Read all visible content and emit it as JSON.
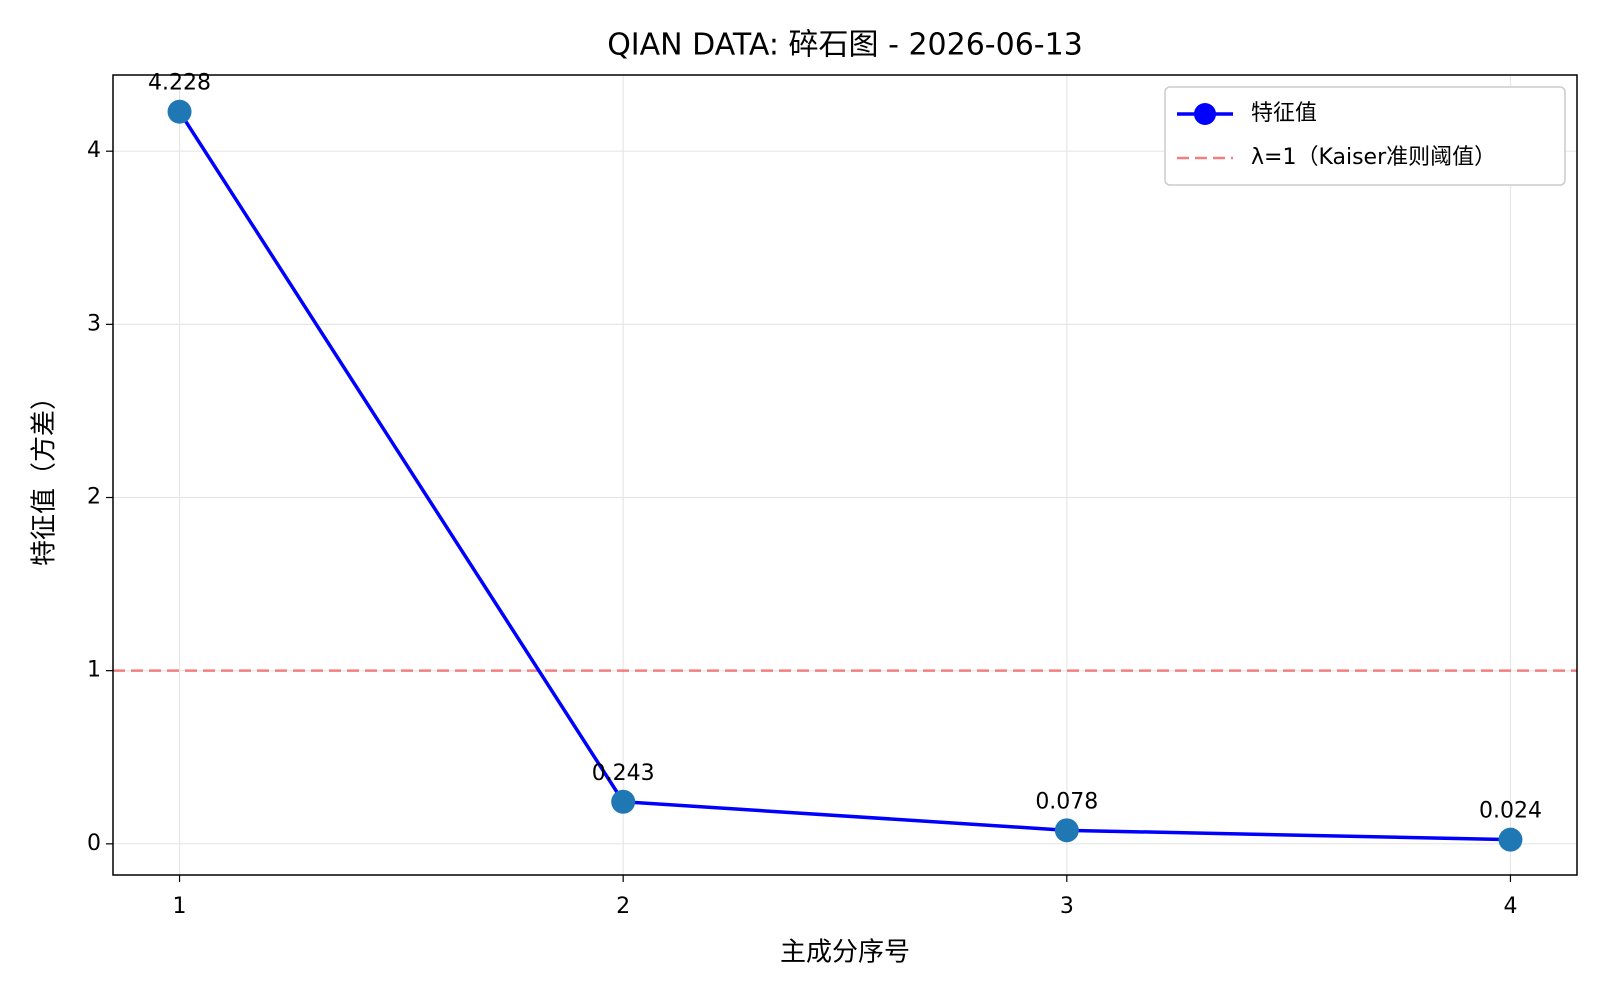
{
  "chart_data": {
    "type": "line",
    "title": "QIAN DATA: 碎石图 - 2026-06-13",
    "x_label": "主成分序号",
    "y_label": "特征值（方差）",
    "x": [
      1,
      2,
      3,
      4
    ],
    "series": [
      {
        "name": "特征值",
        "color": "#0000ff",
        "marker_color": "#1f77b4",
        "values": [
          4.228,
          0.243,
          0.078,
          0.024
        ]
      }
    ],
    "hlines": [
      {
        "y": 1,
        "label": "λ=1（Kaiser准则阈值）",
        "color": "#f08080"
      }
    ],
    "xlim": [
      0.85,
      4.15
    ],
    "xticks": [
      1,
      2,
      3,
      4
    ],
    "ylim": [
      -0.18,
      4.44
    ],
    "yticks": [
      0,
      1,
      2,
      3,
      4
    ],
    "grid": true,
    "legend": "upper right"
  }
}
